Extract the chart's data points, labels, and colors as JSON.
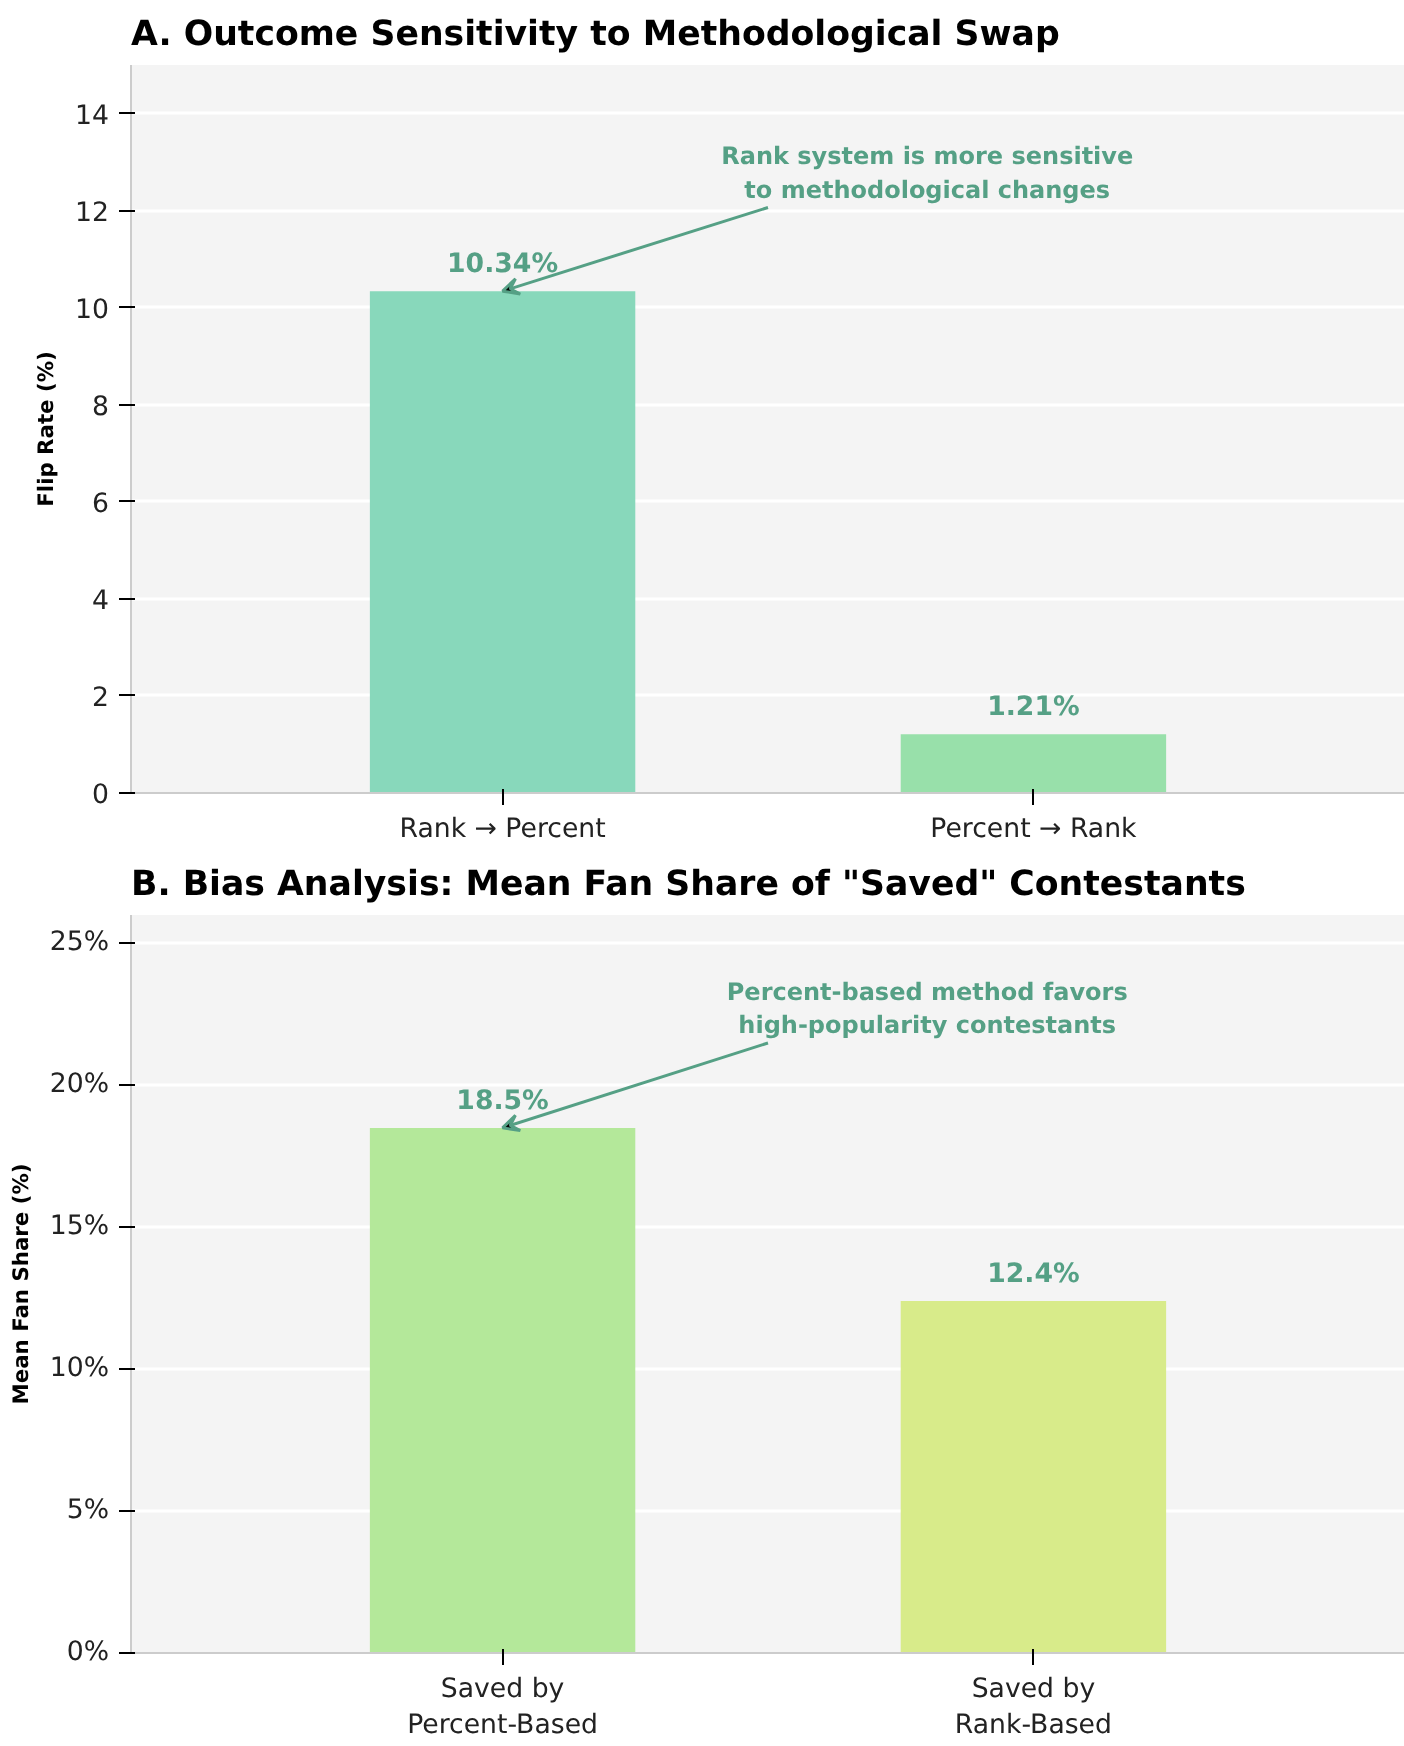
{
  "chart_data": [
    {
      "type": "bar",
      "title": "A. Outcome Sensitivity to Methodological Swap",
      "ylabel": "Flip Rate (%)",
      "categories": [
        "Rank → Percent",
        "Percent → Rank"
      ],
      "values": [
        10.34,
        1.21
      ],
      "colors": [
        "#88d8bb",
        "#98e0aa"
      ],
      "value_labels": [
        "10.34%",
        "1.21%"
      ],
      "ylim": [
        0,
        15
      ],
      "yticks": [
        0,
        2,
        4,
        6,
        8,
        10,
        12,
        14
      ],
      "grid": "y",
      "annotations": [
        {
          "text": "Rank system is more sensitive\nto methodological changes",
          "x": "Rank → Percent",
          "y": 10.34
        }
      ]
    },
    {
      "type": "bar",
      "title": "B. Bias Analysis: Mean Fan Share of \"Saved\" Contestants",
      "ylabel": "Mean Fan Share (%)",
      "categories": [
        "Saved by\nPercent-Based",
        "Saved by\nRank-Based"
      ],
      "values": [
        18.5,
        12.4
      ],
      "colors": [
        "#b4e89a",
        "#d8eb8a"
      ],
      "value_labels": [
        "18.5%",
        "12.4%"
      ],
      "ylim": [
        0,
        26
      ],
      "yticks": [
        {
          "value": 0,
          "label": "0%"
        },
        {
          "value": 5,
          "label": "5%"
        },
        {
          "value": 10,
          "label": "10%"
        },
        {
          "value": 15,
          "label": "15%"
        },
        {
          "value": 20,
          "label": "20%"
        },
        {
          "value": 25,
          "label": "25%"
        }
      ],
      "grid": "y",
      "annotations": [
        {
          "text": "Percent-based method favors\nhigh-popularity contestants",
          "x": "Saved by\nPercent-Based",
          "y": 18.5
        }
      ]
    }
  ]
}
